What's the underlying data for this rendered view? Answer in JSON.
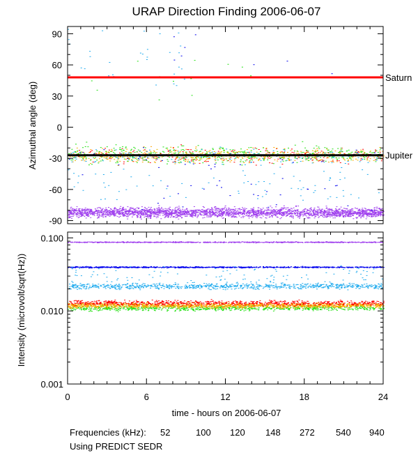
{
  "chart_data": [
    {
      "type": "scatter",
      "title": "URAP Direction Finding  2006-06-07",
      "ylabel": "Azimuthal angle (deg)",
      "xlim": [
        0,
        24
      ],
      "ylim": [
        -93,
        97
      ],
      "yticks": [
        90,
        60,
        30,
        0,
        -30,
        -60,
        -90
      ],
      "reference_lines": [
        {
          "name": "Saturn",
          "y": 48,
          "color": "#ff0000"
        },
        {
          "name": "Jupiter",
          "y": -27,
          "color": "#000000"
        }
      ],
      "series": [
        {
          "name": "52",
          "band_center": -27,
          "band_spread": 12
        },
        {
          "name": "100",
          "band_center": -27,
          "band_spread": 12
        },
        {
          "name": "120",
          "band_center": -27,
          "band_spread": 12
        },
        {
          "name": "148",
          "band_center": -26,
          "band_spread": 14
        },
        {
          "name": "272",
          "band_center": -28,
          "band_spread": 14
        },
        {
          "name": "540",
          "band_center": -28,
          "band_spread": 18
        },
        {
          "name": "940",
          "band_center": -82,
          "band_spread": 8
        }
      ]
    },
    {
      "type": "scatter",
      "xlabel": "time - hours on 2006-06-07",
      "ylabel": "Intensity (microvolt/sqrt(Hz))",
      "xlim": [
        0,
        24
      ],
      "ylim": [
        0.001,
        0.12
      ],
      "yscale": "log",
      "yticks": [
        "0.100",
        "0.010",
        "0.001"
      ],
      "xticks": [
        "0",
        "6",
        "12",
        "18",
        "24"
      ],
      "series": [
        {
          "name": "940",
          "level": 0.088
        },
        {
          "name": "540",
          "level": 0.04
        },
        {
          "name": "272",
          "level": 0.022
        },
        {
          "name": "148",
          "level": 0.011
        },
        {
          "name": "120",
          "level": 0.012
        },
        {
          "name": "100",
          "level": 0.012
        },
        {
          "name": "52",
          "level": 0.013
        }
      ]
    }
  ],
  "legend": {
    "label": "Frequencies (kHz):",
    "items": [
      {
        "text": "52",
        "color": "#ff0000"
      },
      {
        "text": "100",
        "color": "#ffa500"
      },
      {
        "text": "120",
        "color": "#e6b800"
      },
      {
        "text": "148",
        "color": "#22e010"
      },
      {
        "text": "272",
        "color": "#1eaaee"
      },
      {
        "text": "540",
        "color": "#0000ee"
      },
      {
        "text": "940",
        "color": "#a040ee"
      }
    ]
  },
  "footer": "Using PREDICT SEDR"
}
